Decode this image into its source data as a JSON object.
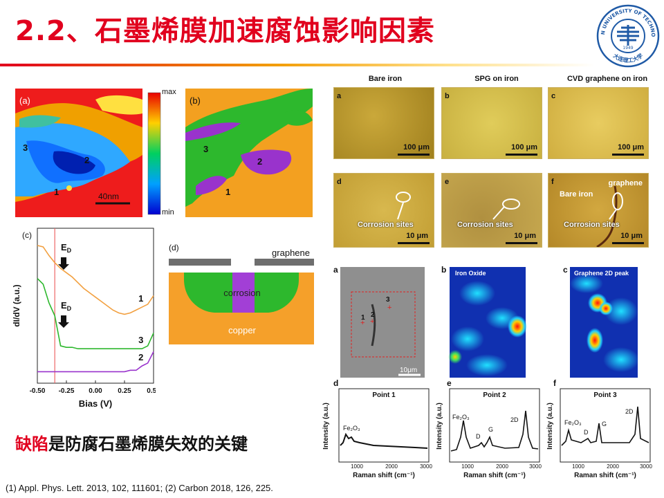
{
  "title": "2.2、石墨烯膜加速腐蚀影响因素",
  "logo": {
    "text_top": "DALIAN UNIVERSITY OF TECHNOLOGY",
    "text_bottom": "大连理工大学",
    "year": "1949"
  },
  "stm_maps": {
    "panel_a": "(a)",
    "panel_b": "(b)",
    "region_labels": [
      "1",
      "2",
      "3"
    ],
    "scale": "40nm",
    "colorbar": {
      "max": "max",
      "min": "min"
    }
  },
  "spectra_c": {
    "panel": "(c)",
    "ylabel": "dI/dV (a.u.)",
    "xlabel": "Bias (V)",
    "ed_label": "E",
    "ed_sub": "D",
    "curve_labels": [
      "1",
      "3",
      "2"
    ],
    "colors": {
      "curve1": "#f2a040",
      "curve3": "#2db82d",
      "curve2": "#9933cc",
      "marker": "#ee6666"
    }
  },
  "chart_data": {
    "type": "line",
    "xlabel": "Bias (V)",
    "ylabel": "dI/dV (a.u.)",
    "xlim": [
      -0.5,
      0.5
    ],
    "x_ticks": [
      "-0.50",
      "-0.25",
      "0.00",
      "0.25",
      "0.50"
    ],
    "x": [
      -0.5,
      -0.45,
      -0.4,
      -0.35,
      -0.3,
      -0.25,
      -0.2,
      -0.15,
      -0.1,
      -0.05,
      0.0,
      0.05,
      0.1,
      0.15,
      0.2,
      0.25,
      0.3,
      0.35,
      0.4,
      0.45,
      0.5
    ],
    "series": [
      {
        "name": "1",
        "values": [
          9.6,
          9.5,
          8.9,
          8.4,
          8.0,
          7.7,
          7.4,
          7.0,
          6.6,
          6.3,
          6.0,
          5.7,
          5.4,
          5.1,
          4.9,
          4.8,
          4.9,
          5.1,
          5.3,
          5.5,
          6.1
        ]
      },
      {
        "name": "3",
        "values": [
          7.3,
          6.9,
          5.6,
          4.7,
          2.6,
          2.5,
          2.5,
          2.4,
          2.4,
          2.4,
          2.4,
          2.4,
          2.4,
          2.4,
          2.4,
          2.4,
          2.4,
          2.4,
          2.4,
          2.6,
          3.5
        ]
      },
      {
        "name": "2",
        "values": [
          0.8,
          0.8,
          0.8,
          0.8,
          0.8,
          0.8,
          0.8,
          0.8,
          0.8,
          0.8,
          0.8,
          0.8,
          0.8,
          0.8,
          0.8,
          0.8,
          0.9,
          0.9,
          1.2,
          1.4,
          2.2
        ]
      }
    ],
    "marker_x": -0.35,
    "ylim": [
      0,
      10.8
    ]
  },
  "schematic_d": {
    "panel": "(d)",
    "graphene": "graphene",
    "corrosion": "corrosion",
    "copper": "copper"
  },
  "micrographs": {
    "headers": [
      "Bare iron",
      "SPG on iron",
      "CVD graphene on iron"
    ],
    "panels": [
      "a",
      "b",
      "c",
      "d",
      "e",
      "f"
    ],
    "scales_top": [
      "100 μm",
      "100 μm",
      "100 μm"
    ],
    "scales_bottom": [
      "10 μm",
      "10 μm",
      "10 μm"
    ],
    "corrosion": "Corrosion sites",
    "bare_iron": "Bare iron",
    "graphene": "graphene"
  },
  "raman_maps": {
    "panels": [
      "a",
      "b",
      "c"
    ],
    "map_b_title": "Iron Oxide",
    "map_c_title": "Graphene 2D peak",
    "points": [
      "1",
      "2",
      "3"
    ],
    "scale": "10μm"
  },
  "raman_spectra": {
    "panels": [
      "d",
      "e",
      "f"
    ],
    "titles": [
      "Point 1",
      "Point 2",
      "Point 3"
    ],
    "ylabel": "Intensity (a.u.)",
    "xlabel": "Raman shift (cm⁻¹)",
    "x_ticks": [
      "1000",
      "2000",
      "3000"
    ],
    "peak_fe": "Fe₂O₃",
    "peak_d": "D",
    "peak_g": "G",
    "peak_2d": "2D"
  },
  "conclusion": {
    "highlight": "缺陷",
    "rest": "是防腐石墨烯膜失效的关键"
  },
  "references": "(1) Appl. Phys. Lett. 2013, 102, 111601; (2) Carbon 2018, 126, 225."
}
